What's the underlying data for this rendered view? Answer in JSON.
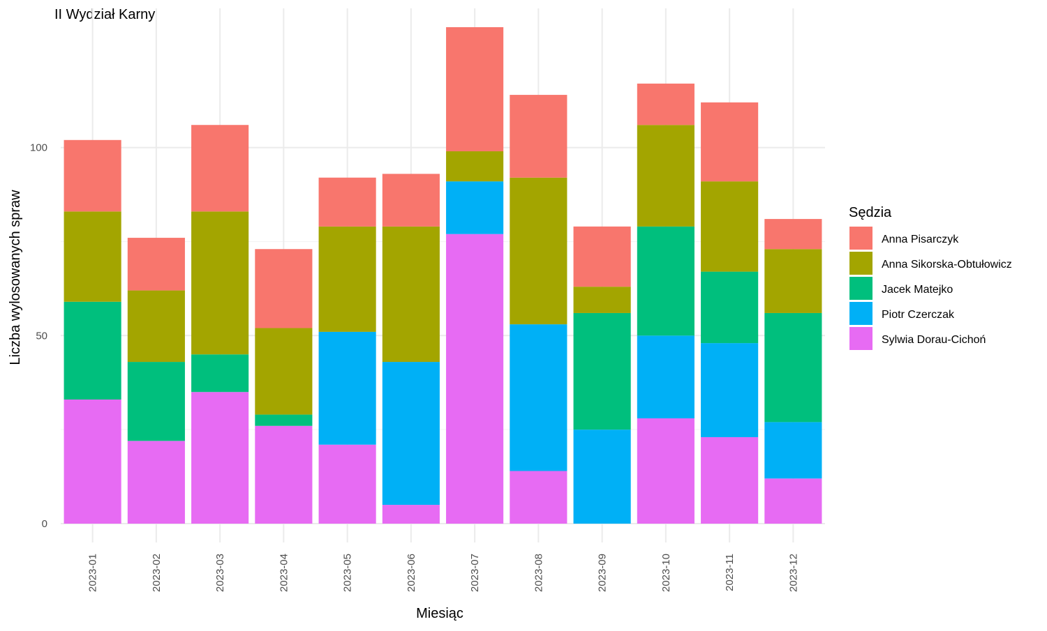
{
  "chart_data": {
    "type": "bar",
    "stacked": true,
    "title": "II Wydział Karny",
    "xlabel": "Miesiąc",
    "ylabel": "Liczba wylosowanych spraw",
    "ylim": [
      -5,
      137
    ],
    "yticks": [
      0,
      50,
      100
    ],
    "grid": true,
    "legend": {
      "title": "Sędzia",
      "position": "right"
    },
    "categories": [
      "2023-01",
      "2023-02",
      "2023-03",
      "2023-04",
      "2023-05",
      "2023-06",
      "2023-07",
      "2023-08",
      "2023-09",
      "2023-10",
      "2023-11",
      "2023-12"
    ],
    "series": [
      {
        "name": "Sylwia Dorau-Cichoń",
        "color": "#E76BF3",
        "values": [
          33,
          22,
          35,
          26,
          21,
          5,
          77,
          14,
          0,
          28,
          23,
          12
        ]
      },
      {
        "name": "Piotr Czerczak",
        "color": "#00B0F6",
        "values": [
          0,
          0,
          0,
          0,
          30,
          38,
          14,
          39,
          25,
          22,
          25,
          15
        ]
      },
      {
        "name": "Jacek Matejko",
        "color": "#00BF7D",
        "values": [
          26,
          21,
          10,
          3,
          0,
          0,
          0,
          0,
          31,
          29,
          19,
          29
        ]
      },
      {
        "name": "Anna Sikorska-Obtułowicz",
        "color": "#A3A500",
        "values": [
          24,
          19,
          38,
          23,
          28,
          36,
          8,
          39,
          7,
          27,
          24,
          17
        ]
      },
      {
        "name": "Anna Pisarczyk",
        "color": "#F8766D",
        "values": [
          19,
          14,
          23,
          21,
          13,
          14,
          33,
          22,
          16,
          11,
          21,
          8
        ]
      }
    ],
    "legend_order": [
      "Anna Pisarczyk",
      "Anna Sikorska-Obtułowicz",
      "Jacek Matejko",
      "Piotr Czerczak",
      "Sylwia Dorau-Cichoń"
    ]
  }
}
